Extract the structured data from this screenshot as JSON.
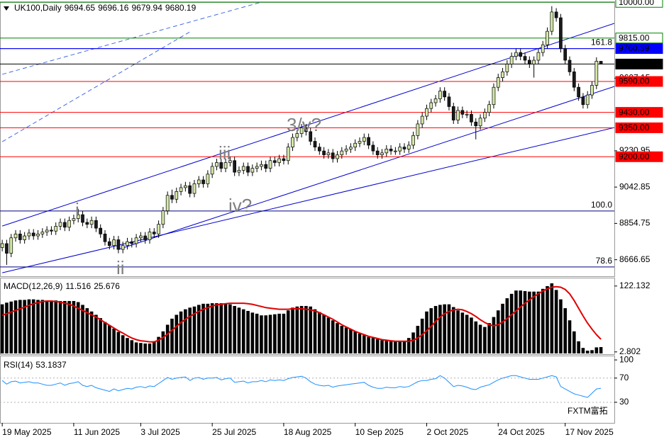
{
  "chart_data": [
    {
      "type": "candlestick",
      "title": "UK100,Daily",
      "last_bar": [
        9694.65,
        9696.16,
        9679.94,
        9680.19
      ],
      "up_color": "#d4e8a8",
      "down_color": "#1a1a1a",
      "xlim": [
        -0.5,
        137
      ],
      "xticks": [
        {
          "value": 0,
          "label": "19 May 2025"
        },
        {
          "value": 16,
          "label": "11 Jun 2025"
        },
        {
          "value": 31,
          "label": "3 Jul 2025"
        },
        {
          "value": 47,
          "label": "25 Jul 2025"
        },
        {
          "value": 63,
          "label": "18 Aug 2025"
        },
        {
          "value": 79,
          "label": "10 Sep 2025"
        },
        {
          "value": 95,
          "label": "2 Oct 2025"
        },
        {
          "value": 111,
          "label": "24 Oct 2025"
        },
        {
          "value": 126,
          "label": "17 Nov 2025"
        }
      ],
      "ylim": [
        8581,
        10001
      ],
      "yticks": [
        9607.15,
        9230.95,
        9042.85,
        8854.75,
        8666.65
      ],
      "open": [
        8730,
        8750,
        8700,
        8780,
        8800,
        8770,
        8790,
        8805,
        8790,
        8800,
        8810,
        8820,
        8815,
        8840,
        8860,
        8835,
        8870,
        8880,
        8900,
        8860,
        8850,
        8870,
        8830,
        8800,
        8760,
        8740,
        8770,
        8720,
        8740,
        8760,
        8750,
        8780,
        8790,
        8770,
        8810,
        8800,
        8850,
        8920,
        9000,
        8980,
        9020,
        9040,
        9050,
        9010,
        9060,
        9080,
        9060,
        9110,
        9150,
        9170,
        9140,
        9170,
        9180,
        9120,
        9130,
        9150,
        9120,
        9140,
        9150,
        9160,
        9140,
        9180,
        9170,
        9190,
        9180,
        9250,
        9300,
        9320,
        9350,
        9330,
        9280,
        9250,
        9230,
        9210,
        9220,
        9190,
        9210,
        9230,
        9240,
        9250,
        9270,
        9280,
        9300,
        9260,
        9230,
        9210,
        9220,
        9240,
        9230,
        9230,
        9250,
        9240,
        9260,
        9310,
        9370,
        9410,
        9450,
        9480,
        9500,
        9540,
        9510,
        9460,
        9390,
        9440,
        9420,
        9420,
        9380,
        9360,
        9400,
        9430,
        9470,
        9560,
        9610,
        9640,
        9680,
        9720,
        9740,
        9720,
        9700,
        9680,
        9700,
        9740,
        9780,
        9850,
        9950,
        9920,
        9760,
        9700,
        9640,
        9560,
        9510,
        9470,
        9520,
        9570,
        9694.65
      ],
      "high": [
        8770,
        8770,
        8800,
        8820,
        8820,
        8810,
        8825,
        8825,
        8820,
        8830,
        8840,
        8840,
        8860,
        8880,
        8880,
        8890,
        8900,
        8930,
        8920,
        8880,
        8890,
        8890,
        8850,
        8820,
        8780,
        8790,
        8790,
        8760,
        8780,
        8780,
        8800,
        8810,
        8810,
        8830,
        8830,
        8870,
        8940,
        9020,
        9030,
        9040,
        9060,
        9070,
        9070,
        9080,
        9100,
        9100,
        9130,
        9170,
        9190,
        9190,
        9190,
        9200,
        9200,
        9150,
        9170,
        9170,
        9160,
        9170,
        9180,
        9180,
        9200,
        9200,
        9210,
        9210,
        9270,
        9320,
        9340,
        9370,
        9370,
        9350,
        9300,
        9270,
        9250,
        9240,
        9240,
        9230,
        9250,
        9260,
        9270,
        9290,
        9300,
        9320,
        9320,
        9280,
        9250,
        9240,
        9260,
        9260,
        9250,
        9270,
        9270,
        9280,
        9330,
        9390,
        9430,
        9470,
        9500,
        9520,
        9560,
        9560,
        9530,
        9480,
        9460,
        9460,
        9440,
        9440,
        9400,
        9420,
        9450,
        9490,
        9580,
        9630,
        9660,
        9700,
        9740,
        9760,
        9760,
        9740,
        9720,
        9720,
        9760,
        9800,
        9870,
        9980,
        9970,
        9940,
        9780,
        9720,
        9660,
        9580,
        9530,
        9540,
        9590,
        9715,
        9696.16
      ],
      "low": [
        8710,
        8640,
        8680,
        8760,
        8750,
        8750,
        8770,
        8770,
        8770,
        8780,
        8790,
        8795,
        8795,
        8820,
        8815,
        8815,
        8850,
        8860,
        8840,
        8830,
        8830,
        8810,
        8780,
        8740,
        8720,
        8720,
        8700,
        8700,
        8720,
        8730,
        8730,
        8760,
        8750,
        8750,
        8780,
        8780,
        8830,
        8900,
        8960,
        8960,
        9000,
        9020,
        8990,
        8990,
        9040,
        9040,
        9040,
        9090,
        9130,
        9120,
        9120,
        9150,
        9100,
        9100,
        9110,
        9100,
        9100,
        9120,
        9130,
        9120,
        9120,
        9150,
        9150,
        9160,
        9160,
        9230,
        9280,
        9300,
        9310,
        9260,
        9230,
        9210,
        9190,
        9190,
        9170,
        9170,
        9190,
        9210,
        9220,
        9230,
        9250,
        9260,
        9240,
        9210,
        9190,
        9190,
        9200,
        9210,
        9210,
        9210,
        9220,
        9220,
        9240,
        9290,
        9350,
        9390,
        9430,
        9460,
        9480,
        9490,
        9440,
        9370,
        9370,
        9400,
        9400,
        9360,
        9290,
        9340,
        9380,
        9410,
        9450,
        9540,
        9590,
        9620,
        9660,
        9700,
        9700,
        9680,
        9660,
        9610,
        9680,
        9720,
        9760,
        9830,
        9900,
        9740,
        9680,
        9620,
        9540,
        9490,
        9450,
        9450,
        9500,
        9550,
        9679.94
      ],
      "close": [
        8750,
        8700,
        8780,
        8800,
        8770,
        8790,
        8805,
        8790,
        8800,
        8810,
        8820,
        8815,
        8840,
        8860,
        8835,
        8870,
        8880,
        8900,
        8860,
        8850,
        8870,
        8830,
        8800,
        8760,
        8740,
        8770,
        8720,
        8740,
        8760,
        8750,
        8780,
        8790,
        8770,
        8810,
        8800,
        8850,
        8920,
        9000,
        8980,
        9020,
        9040,
        9050,
        9010,
        9060,
        9080,
        9060,
        9110,
        9150,
        9170,
        9140,
        9170,
        9180,
        9120,
        9130,
        9150,
        9120,
        9140,
        9150,
        9160,
        9140,
        9180,
        9170,
        9190,
        9180,
        9250,
        9300,
        9320,
        9350,
        9330,
        9280,
        9250,
        9230,
        9210,
        9220,
        9190,
        9210,
        9230,
        9240,
        9250,
        9270,
        9280,
        9300,
        9260,
        9230,
        9210,
        9220,
        9240,
        9230,
        9230,
        9250,
        9240,
        9260,
        9310,
        9370,
        9410,
        9450,
        9480,
        9500,
        9540,
        9510,
        9460,
        9390,
        9440,
        9420,
        9420,
        9380,
        9360,
        9400,
        9430,
        9470,
        9560,
        9610,
        9640,
        9680,
        9720,
        9740,
        9720,
        9700,
        9680,
        9700,
        9740,
        9780,
        9850,
        9950,
        9920,
        9760,
        9700,
        9640,
        9560,
        9510,
        9470,
        9520,
        9570,
        9695,
        9680.19
      ],
      "levels": [
        {
          "value": 10000,
          "label": "10000.00",
          "color": "#008000",
          "box": "outline"
        },
        {
          "value": 9815,
          "label": "9815.00",
          "color": "#008000",
          "box": "outline"
        },
        {
          "value": 9760.39,
          "label": "9760.39",
          "color": "#0000ff",
          "box": "filled"
        },
        {
          "value": 9680.19,
          "label": "9680.19",
          "color": "#000000",
          "box": "filled"
        },
        {
          "value": 9590,
          "label": "9590.00",
          "color": "#ff0000",
          "box": "filled"
        },
        {
          "value": 9430,
          "label": "9430.00",
          "color": "#ff0000",
          "box": "filled"
        },
        {
          "value": 9350,
          "label": "9350.00",
          "color": "#ff0000",
          "box": "filled"
        },
        {
          "value": 9200,
          "label": "9200.00",
          "color": "#ff0000",
          "box": "filled"
        }
      ],
      "fib": [
        {
          "label": "161.8",
          "value": 9760.39
        },
        {
          "label": "100.0",
          "value": 8919
        },
        {
          "label": "78.6",
          "value": 8629
        }
      ],
      "fib_color": "#000080",
      "trendlines": [
        {
          "points": [
            [
              0,
              8841
            ],
            [
              137,
              9891
            ]
          ],
          "color": "#0000cd",
          "dashed": false
        },
        {
          "points": [
            [
              26,
              8720
            ],
            [
              137,
              9564
            ]
          ],
          "color": "#0000cd",
          "dashed": false
        },
        {
          "points": [
            [
              0,
              8599
            ],
            [
              137,
              9351
            ]
          ],
          "color": "#0000cd",
          "dashed": false
        },
        {
          "points": [
            [
              0,
              9627
            ],
            [
              58,
              10001
            ]
          ],
          "color": "#4169e1",
          "dashed": true
        },
        {
          "points": [
            [
              0,
              9278
            ],
            [
              42,
              9847
            ]
          ],
          "color": "#4169e1",
          "dashed": true
        }
      ],
      "wave_labels": [
        "i",
        "ii",
        "iii",
        "iv?",
        "3/v?"
      ]
    },
    {
      "type": "macd",
      "title": "MACD(12,26,9)",
      "readout": [
        11.516,
        25.676
      ],
      "ylim": [
        -1.3,
        136
      ],
      "yticks": [
        122.132,
        2.802
      ],
      "histogram": {
        "color": "#000000",
        "values": [
          89,
          92,
          94,
          96,
          97,
          97,
          98,
          98,
          97,
          97,
          96,
          96,
          96,
          95,
          95,
          95,
          95,
          93,
          88,
          82,
          76,
          70,
          64,
          57,
          51,
          45,
          39,
          33,
          28,
          24,
          20,
          19,
          18,
          18,
          22,
          30,
          40,
          52,
          63,
          70,
          76,
          80,
          83,
          85,
          88,
          90,
          90,
          91,
          91,
          91,
          91,
          89,
          86,
          83,
          80,
          77,
          74,
          72,
          69,
          69,
          70,
          71,
          72,
          72,
          78,
          83,
          85,
          86,
          86,
          85,
          80,
          75,
          70,
          65,
          60,
          55,
          50,
          47,
          44,
          40,
          36,
          33,
          30,
          28,
          26,
          24,
          23,
          22,
          22,
          22,
          22,
          28,
          38,
          50,
          63,
          76,
          82,
          86,
          88,
          89,
          89,
          84,
          78,
          74,
          70,
          65,
          58,
          52,
          48,
          55,
          66,
          78,
          90,
          100,
          108,
          114,
          114,
          113,
          112,
          112,
          112,
          117,
          122,
          127,
          115,
          98,
          82,
          60,
          40,
          22,
          10,
          5,
          6,
          11,
          11.516
        ]
      },
      "signal": {
        "color": "#e00000",
        "values": [
          69,
          72,
          75,
          78,
          81,
          84,
          87,
          90,
          92,
          94,
          95,
          95,
          94,
          93,
          91,
          89,
          86,
          82,
          78,
          74,
          70,
          66,
          61,
          56,
          51,
          46,
          41,
          37,
          32,
          28,
          25,
          23,
          22,
          21,
          21,
          24,
          29,
          35,
          42,
          49,
          56,
          62,
          67,
          72,
          76,
          80,
          83,
          86,
          88,
          89,
          90,
          91,
          91,
          91,
          91,
          90,
          89,
          87,
          85,
          83,
          82,
          81,
          80,
          80,
          80,
          81,
          81,
          81,
          80,
          79,
          77,
          74,
          70,
          66,
          62,
          57,
          52,
          48,
          44,
          40,
          37,
          34,
          31,
          29,
          27,
          25,
          24,
          23,
          22,
          22,
          22,
          22,
          24,
          28,
          34,
          41,
          49,
          58,
          66,
          72,
          76,
          79,
          80,
          79,
          76,
          72,
          67,
          61,
          56,
          52,
          50,
          52,
          57,
          63,
          70,
          77,
          84,
          91,
          97,
          103,
          108,
          113,
          117,
          120,
          121,
          120,
          116,
          108,
          96,
          82,
          68,
          55,
          44,
          34,
          25.676
        ]
      }
    },
    {
      "type": "rsi",
      "title": "RSI(14)",
      "readout": 53.1837,
      "ylim": [
        -4,
        106
      ],
      "yticks": [
        100,
        70,
        30
      ],
      "levels": [
        70,
        30
      ],
      "color": "#1e90ff",
      "values": [
        66,
        60,
        64,
        65,
        62,
        63,
        64,
        62,
        62,
        60,
        58,
        58,
        60,
        62,
        58,
        61,
        62,
        64,
        58,
        56,
        58,
        54,
        52,
        50,
        48,
        52,
        49,
        51,
        53,
        52,
        55,
        56,
        54,
        57,
        56,
        61,
        66,
        71,
        68,
        70,
        71,
        72,
        66,
        70,
        71,
        68,
        70,
        70,
        71,
        67,
        69,
        70,
        63,
        64,
        65,
        62,
        64,
        64,
        66,
        64,
        67,
        66,
        67,
        66,
        69,
        71,
        72,
        73,
        70,
        64,
        60,
        58,
        57,
        58,
        55,
        57,
        58,
        59,
        60,
        61,
        62,
        63,
        58,
        55,
        53,
        53,
        55,
        54,
        54,
        56,
        55,
        56,
        60,
        64,
        66,
        66,
        68,
        69,
        74,
        70,
        63,
        56,
        58,
        57,
        55,
        52,
        51,
        55,
        57,
        59,
        63,
        67,
        70,
        72,
        74,
        74,
        72,
        70,
        68,
        68,
        68,
        70,
        72,
        74,
        72,
        56,
        52,
        48,
        44,
        42,
        40,
        38,
        45,
        52,
        53.1837
      ]
    }
  ],
  "watermark": "FXTM富拓"
}
